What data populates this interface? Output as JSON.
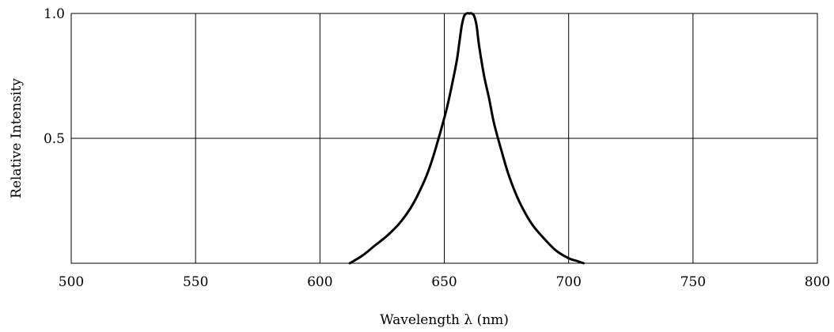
{
  "chart_data": {
    "type": "line",
    "title": "",
    "xlabel": "Wavelength  λ (nm)",
    "ylabel": "Relative Intensity",
    "xlim": [
      500,
      800
    ],
    "ylim": [
      0,
      1.0
    ],
    "x_ticks": [
      500,
      550,
      600,
      650,
      700,
      750,
      800
    ],
    "x_tick_labels": [
      "500",
      "550",
      "600",
      "650",
      "700",
      "750",
      "800"
    ],
    "y_ticks": [
      0.5,
      1.0
    ],
    "y_tick_labels": [
      "0.5",
      "1.0"
    ],
    "grid": true,
    "legend": "none",
    "line_color": "#000000",
    "series": [
      {
        "x": [
          612,
          617,
          622,
          627,
          632,
          637,
          642,
          645,
          648,
          651,
          653,
          655,
          656,
          657,
          658,
          659,
          660,
          661,
          662,
          663,
          664,
          666,
          668,
          670,
          673,
          676,
          680,
          685,
          690,
          695,
          700,
          703,
          706
        ],
        "y": [
          0.0,
          0.03,
          0.07,
          0.11,
          0.16,
          0.23,
          0.33,
          0.41,
          0.51,
          0.62,
          0.71,
          0.81,
          0.88,
          0.95,
          0.99,
          1.0,
          1.0,
          1.0,
          0.99,
          0.95,
          0.87,
          0.75,
          0.66,
          0.56,
          0.45,
          0.35,
          0.25,
          0.16,
          0.1,
          0.05,
          0.02,
          0.01,
          0.0
        ]
      }
    ]
  }
}
